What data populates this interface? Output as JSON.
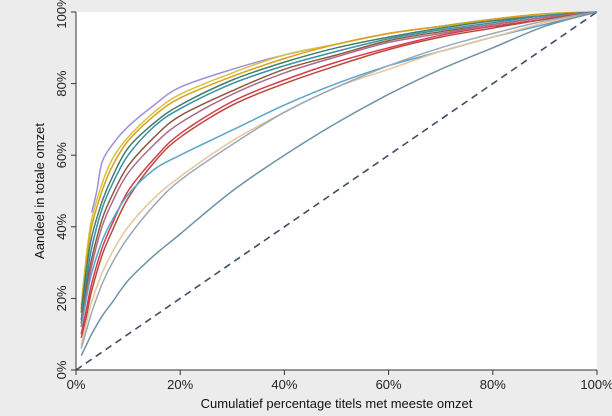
{
  "chart_data": {
    "type": "line",
    "title": "",
    "xlabel": "Cumulatief percentage titels met meeste omzet",
    "ylabel": "Aandeel in totale omzet",
    "xlim": [
      0,
      100
    ],
    "ylim": [
      0,
      100
    ],
    "grid": false,
    "legend": "none",
    "x_ticks": [
      0,
      20,
      40,
      60,
      80,
      100
    ],
    "x_tick_labels": [
      "0%",
      "20%",
      "40%",
      "60%",
      "80%",
      "100%"
    ],
    "y_ticks": [
      0,
      20,
      40,
      60,
      80,
      100
    ],
    "y_tick_labels": [
      "0%",
      "20%",
      "40%",
      "60%",
      "80%",
      "100%"
    ],
    "reference_line": {
      "x": [
        0,
        100
      ],
      "y": [
        0,
        100
      ],
      "style": "dashed",
      "color": "#3f4e66"
    },
    "series": [
      {
        "color": "#9f8fe0",
        "x": [
          3,
          4,
          5,
          7,
          10,
          15,
          20,
          30,
          40,
          50,
          60,
          70,
          80,
          90,
          100
        ],
        "y": [
          44,
          50,
          58,
          63,
          68,
          74,
          79,
          84,
          88,
          91,
          94,
          96,
          98,
          99,
          100
        ]
      },
      {
        "color": "#d6c23a",
        "x": [
          1,
          2,
          3,
          5,
          7,
          10,
          15,
          20,
          30,
          40,
          50,
          60,
          70,
          80,
          90,
          100
        ],
        "y": [
          18,
          32,
          42,
          52,
          59,
          65,
          72,
          77,
          83,
          88,
          91,
          94,
          96,
          98,
          99.5,
          100
        ]
      },
      {
        "color": "#d9a020",
        "x": [
          1,
          2,
          3,
          5,
          7,
          10,
          15,
          20,
          30,
          40,
          50,
          60,
          70,
          80,
          90,
          100
        ],
        "y": [
          17,
          30,
          40,
          50,
          57,
          64,
          71,
          76,
          82,
          87,
          91,
          94,
          96,
          98,
          99.5,
          100
        ]
      },
      {
        "color": "#3f7f6a",
        "x": [
          1,
          2,
          3,
          5,
          7,
          10,
          15,
          20,
          30,
          40,
          50,
          60,
          70,
          80,
          90,
          100
        ],
        "y": [
          16,
          28,
          37,
          47,
          54,
          62,
          69,
          74,
          81,
          86,
          90,
          93,
          95.5,
          97.5,
          99,
          100
        ]
      },
      {
        "color": "#3a8fa8",
        "x": [
          1,
          2,
          3,
          5,
          7,
          10,
          15,
          20,
          30,
          40,
          50,
          60,
          70,
          80,
          90,
          100
        ],
        "y": [
          14,
          25,
          34,
          45,
          52,
          60,
          68,
          73,
          80,
          85,
          89,
          92.5,
          95,
          97,
          99,
          100
        ]
      },
      {
        "color": "#8b5a3c",
        "x": [
          1,
          2,
          3,
          5,
          7,
          10,
          15,
          20,
          30,
          40,
          50,
          60,
          70,
          80,
          90,
          100
        ],
        "y": [
          13,
          23,
          31,
          42,
          49,
          57,
          65,
          71,
          78,
          84,
          88,
          92,
          94.5,
          96.5,
          98.5,
          100
        ]
      },
      {
        "color": "#a96c8a",
        "x": [
          1,
          2,
          3,
          5,
          7,
          10,
          15,
          20,
          30,
          40,
          50,
          60,
          70,
          80,
          90,
          100
        ],
        "y": [
          12,
          21,
          29,
          40,
          47,
          55,
          63,
          69,
          77,
          83,
          87.5,
          91.5,
          94,
          96.5,
          98.5,
          100
        ]
      },
      {
        "color": "#d63a52",
        "x": [
          1,
          2,
          3,
          5,
          7,
          10,
          15,
          20,
          30,
          40,
          50,
          60,
          70,
          80,
          90,
          100
        ],
        "y": [
          10,
          17,
          24,
          34,
          41,
          50,
          59,
          66,
          75,
          81,
          86,
          90,
          93.5,
          96,
          98,
          100
        ]
      },
      {
        "color": "#b84a3a",
        "x": [
          1,
          2,
          3,
          5,
          7,
          10,
          15,
          20,
          30,
          40,
          50,
          60,
          70,
          80,
          90,
          100
        ],
        "y": [
          9,
          15,
          22,
          32,
          39,
          48,
          58,
          65,
          74,
          80,
          85,
          89.5,
          93,
          95.5,
          98,
          100
        ]
      },
      {
        "color": "#5aa5c8",
        "x": [
          1,
          2,
          3,
          5,
          7,
          10,
          15,
          20,
          30,
          40,
          50,
          60,
          70,
          80,
          90,
          100
        ],
        "y": [
          12,
          20,
          27,
          36,
          42,
          49,
          56,
          60,
          67,
          74,
          80,
          85,
          89,
          93,
          96.5,
          100
        ]
      },
      {
        "color": "#e8c49a",
        "x": [
          1,
          2,
          3,
          5,
          7,
          10,
          15,
          20,
          30,
          40,
          50,
          60,
          70,
          80,
          90,
          100
        ],
        "y": [
          7,
          13,
          19,
          27,
          33,
          40,
          48,
          54,
          64,
          72,
          79,
          84,
          89,
          93,
          97,
          100
        ]
      },
      {
        "color": "#9aa8ba",
        "x": [
          1,
          2,
          3,
          5,
          7,
          10,
          15,
          20,
          30,
          40,
          50,
          60,
          70,
          80,
          90,
          100
        ],
        "y": [
          6,
          11,
          16,
          24,
          30,
          37,
          46,
          53,
          63,
          72,
          79,
          85,
          90,
          94,
          97.5,
          100
        ]
      },
      {
        "color": "#6f93a5",
        "x": [
          1,
          2,
          3,
          5,
          7,
          10,
          15,
          20,
          30,
          40,
          50,
          60,
          70,
          80,
          90,
          100
        ],
        "y": [
          4,
          7,
          10,
          15,
          19,
          25,
          32,
          38,
          50,
          60,
          69,
          77,
          84,
          90,
          96,
          100
        ]
      }
    ]
  }
}
